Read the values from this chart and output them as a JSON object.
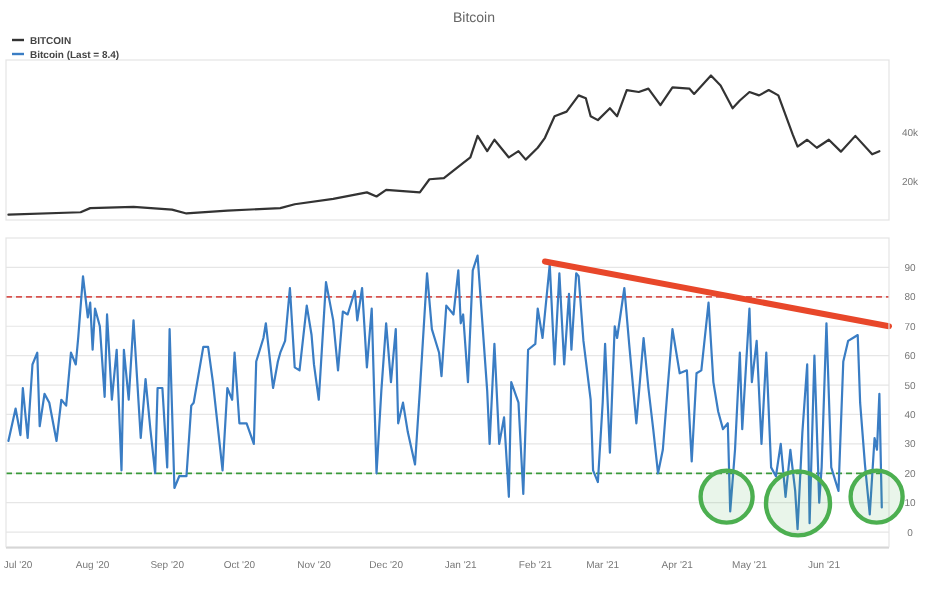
{
  "chart_data": [
    {
      "type": "line",
      "title": "Bitcoin",
      "legend": "top left",
      "tick_labels": "y",
      "xlim": [
        "2020-06-26",
        "2021-06-28"
      ],
      "ylim": [
        4000,
        70000
      ],
      "yticks": [
        {
          "value": 20000,
          "label": "20k"
        },
        {
          "value": 40000,
          "label": "40k"
        }
      ],
      "x": [
        "2020-06-27",
        "2020-07-27",
        "2020-07-31",
        "2020-08-18",
        "2020-09-03",
        "2020-09-09",
        "2020-09-26",
        "2020-10-18",
        "2020-10-24",
        "2020-11-09",
        "2020-11-23",
        "2020-11-27",
        "2020-12-01",
        "2020-12-15",
        "2020-12-19",
        "2020-12-25",
        "2021-01-01",
        "2021-01-05",
        "2021-01-08",
        "2021-01-12",
        "2021-01-15",
        "2021-01-21",
        "2021-01-25",
        "2021-01-28",
        "2021-02-02",
        "2021-02-05",
        "2021-02-09",
        "2021-02-14",
        "2021-02-19",
        "2021-02-22",
        "2021-02-24",
        "2021-02-27",
        "2021-03-04",
        "2021-03-07",
        "2021-03-11",
        "2021-03-16",
        "2021-03-20",
        "2021-03-25",
        "2021-03-30",
        "2021-04-06",
        "2021-04-08",
        "2021-04-15",
        "2021-04-19",
        "2021-04-24",
        "2021-04-27",
        "2021-05-01",
        "2021-05-05",
        "2021-05-09",
        "2021-05-13",
        "2021-05-19",
        "2021-05-21",
        "2021-05-25",
        "2021-05-29",
        "2021-06-03",
        "2021-06-08",
        "2021-06-14",
        "2021-06-21",
        "2021-06-24"
      ],
      "series": [
        {
          "name": "BITCOIN",
          "color": "#333333",
          "values": [
            6200,
            7200,
            8900,
            9400,
            8300,
            6700,
            7900,
            8900,
            10500,
            12700,
            15400,
            13700,
            16400,
            15400,
            20800,
            21300,
            26700,
            29800,
            38700,
            32400,
            37100,
            29800,
            32400,
            28900,
            33800,
            37900,
            46800,
            48700,
            55400,
            54200,
            46800,
            45200,
            50100,
            46800,
            57600,
            56800,
            58200,
            51400,
            58700,
            58200,
            56000,
            63600,
            59500,
            50100,
            53300,
            56800,
            55400,
            57600,
            55400,
            39200,
            34300,
            37100,
            33800,
            37100,
            32200,
            38700,
            31100,
            32400
          ]
        }
      ]
    },
    {
      "type": "line",
      "legend": "top left",
      "grid": "y",
      "xlim": [
        "2020-06-26",
        "2021-06-28"
      ],
      "ylim": [
        -5,
        100
      ],
      "yticks": [
        0,
        10,
        20,
        30,
        40,
        50,
        60,
        70,
        80,
        90
      ],
      "xticks": [
        {
          "value": "2020-07-01",
          "label": "Jul '20"
        },
        {
          "value": "2020-08-01",
          "label": "Aug '20"
        },
        {
          "value": "2020-09-01",
          "label": "Sep '20"
        },
        {
          "value": "2020-10-01",
          "label": "Oct '20"
        },
        {
          "value": "2020-11-01",
          "label": "Nov '20"
        },
        {
          "value": "2020-12-01",
          "label": "Dec '20"
        },
        {
          "value": "2021-01-01",
          "label": "Jan '21"
        },
        {
          "value": "2021-02-01",
          "label": "Feb '21"
        },
        {
          "value": "2021-03-01",
          "label": "Mar '21"
        },
        {
          "value": "2021-04-01",
          "label": "Apr '21"
        },
        {
          "value": "2021-05-01",
          "label": "May '21"
        },
        {
          "value": "2021-06-01",
          "label": "Jun '21"
        }
      ],
      "ref_lines": [
        {
          "axis": "y",
          "value": 80,
          "color": "#d9534f",
          "line_style": "dashed"
        },
        {
          "axis": "y",
          "value": 20,
          "color": "#3a9a3a",
          "line_style": "dashed"
        }
      ],
      "series": [
        {
          "name": "Bitcoin (Last = 8.4)",
          "color": "#3a7dc4",
          "x": [
            "2020-06-27",
            "2020-06-30",
            "2020-07-02",
            "2020-07-03",
            "2020-07-05",
            "2020-07-07",
            "2020-07-09",
            "2020-07-10",
            "2020-07-12",
            "2020-07-14",
            "2020-07-17",
            "2020-07-19",
            "2020-07-21",
            "2020-07-23",
            "2020-07-25",
            "2020-07-26",
            "2020-07-28",
            "2020-07-30",
            "2020-07-31",
            "2020-08-01",
            "2020-08-02",
            "2020-08-04",
            "2020-08-06",
            "2020-08-07",
            "2020-08-09",
            "2020-08-11",
            "2020-08-13",
            "2020-08-14",
            "2020-08-16",
            "2020-08-18",
            "2020-08-21",
            "2020-08-23",
            "2020-08-25",
            "2020-08-27",
            "2020-08-28",
            "2020-08-30",
            "2020-09-01",
            "2020-09-02",
            "2020-09-04",
            "2020-09-06",
            "2020-09-09",
            "2020-09-11",
            "2020-09-12",
            "2020-09-16",
            "2020-09-18",
            "2020-09-20",
            "2020-09-22",
            "2020-09-24",
            "2020-09-26",
            "2020-09-28",
            "2020-09-29",
            "2020-10-01",
            "2020-10-04",
            "2020-10-07",
            "2020-10-08",
            "2020-10-11",
            "2020-10-12",
            "2020-10-15",
            "2020-10-17",
            "2020-10-18",
            "2020-10-20",
            "2020-10-22",
            "2020-10-24",
            "2020-10-26",
            "2020-10-29",
            "2020-10-31",
            "2020-11-01",
            "2020-11-03",
            "2020-11-06",
            "2020-11-09",
            "2020-11-11",
            "2020-11-13",
            "2020-11-15",
            "2020-11-18",
            "2020-11-19",
            "2020-11-21",
            "2020-11-23",
            "2020-11-25",
            "2020-11-27",
            "2020-11-29",
            "2020-12-01",
            "2020-12-03",
            "2020-12-05",
            "2020-12-06",
            "2020-12-08",
            "2020-12-10",
            "2020-12-13",
            "2020-12-15",
            "2020-12-18",
            "2020-12-20",
            "2020-12-23",
            "2020-12-24",
            "2020-12-26",
            "2020-12-29",
            "2020-12-31",
            "2021-01-01",
            "2021-01-02",
            "2021-01-04",
            "2021-01-06",
            "2021-01-08",
            "2021-01-12",
            "2021-01-13",
            "2021-01-15",
            "2021-01-17",
            "2021-01-19",
            "2021-01-21",
            "2021-01-22",
            "2021-01-25",
            "2021-01-27",
            "2021-01-29",
            "2021-02-01",
            "2021-02-02",
            "2021-02-04",
            "2021-02-07",
            "2021-02-09",
            "2021-02-11",
            "2021-02-13",
            "2021-02-15",
            "2021-02-16",
            "2021-02-18",
            "2021-02-19",
            "2021-02-21",
            "2021-02-24",
            "2021-02-25",
            "2021-02-27",
            "2021-03-01",
            "2021-03-02",
            "2021-03-04",
            "2021-03-06",
            "2021-03-07",
            "2021-03-10",
            "2021-03-12",
            "2021-03-15",
            "2021-03-18",
            "2021-03-20",
            "2021-03-22",
            "2021-03-24",
            "2021-03-26",
            "2021-03-28",
            "2021-03-30",
            "2021-04-02",
            "2021-04-05",
            "2021-04-07",
            "2021-04-09",
            "2021-04-11",
            "2021-04-14",
            "2021-04-16",
            "2021-04-18",
            "2021-04-20",
            "2021-04-22",
            "2021-04-23",
            "2021-04-25",
            "2021-04-27",
            "2021-04-28",
            "2021-05-01",
            "2021-05-02",
            "2021-05-04",
            "2021-05-06",
            "2021-05-08",
            "2021-05-10",
            "2021-05-12",
            "2021-05-14",
            "2021-05-16",
            "2021-05-18",
            "2021-05-20",
            "2021-05-21",
            "2021-05-23",
            "2021-05-25",
            "2021-05-26",
            "2021-05-28",
            "2021-05-30",
            "2021-05-31",
            "2021-06-02",
            "2021-06-04",
            "2021-06-07",
            "2021-06-09",
            "2021-06-11",
            "2021-06-13",
            "2021-06-15",
            "2021-06-16",
            "2021-06-18",
            "2021-06-20",
            "2021-06-22",
            "2021-06-23",
            "2021-06-24",
            "2021-06-25"
          ],
          "values": [
            31,
            42,
            33,
            49,
            32,
            57,
            61,
            36,
            47,
            44,
            31,
            45,
            43,
            61,
            57,
            66,
            87,
            73,
            78,
            62,
            76,
            70,
            46,
            74,
            45,
            62,
            21,
            62,
            45,
            72,
            32,
            52,
            35,
            20,
            49,
            49,
            22,
            69,
            15,
            19,
            19,
            43,
            44,
            63,
            63,
            51,
            36,
            21,
            49,
            45,
            61,
            37,
            37,
            30,
            58,
            66,
            71,
            49,
            58,
            61,
            65,
            83,
            56,
            55,
            77,
            67,
            57,
            45,
            85,
            72,
            55,
            75,
            74,
            82,
            72,
            83,
            56,
            76,
            20,
            48,
            71,
            51,
            69,
            37,
            44,
            34,
            23,
            48,
            88,
            69,
            61,
            53,
            77,
            74,
            89,
            71,
            74,
            51,
            89,
            94,
            48,
            30,
            64,
            30,
            39,
            12,
            51,
            44,
            13,
            62,
            64,
            76,
            66,
            91,
            57,
            88,
            57,
            81,
            62,
            88,
            87,
            65,
            45,
            21,
            17,
            44,
            64,
            27,
            70,
            66,
            83,
            64,
            37,
            66,
            49,
            35,
            20,
            28,
            49,
            69,
            54,
            55,
            24,
            54,
            55,
            78,
            51,
            41,
            35,
            37,
            7,
            28,
            61,
            35,
            76,
            51,
            65,
            30,
            61,
            22,
            19,
            30,
            12,
            28,
            14,
            1,
            34,
            57,
            3,
            60,
            10,
            22,
            71,
            22,
            14,
            58,
            65,
            66,
            67,
            44,
            23,
            6,
            32,
            28,
            47,
            8.4
          ]
        },
        {
          "type": "line",
          "color": "#e8472a",
          "x": [
            "2021-02-05",
            "2021-06-28"
          ],
          "values": [
            92,
            70
          ]
        }
      ]
    }
  ]
}
